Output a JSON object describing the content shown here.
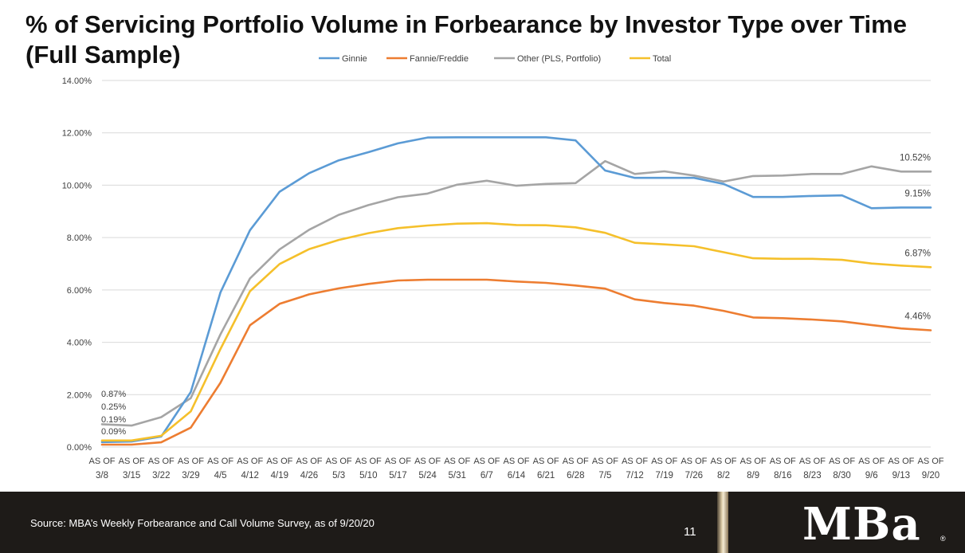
{
  "title": "% of Servicing Portfolio Volume in Forbearance by Investor Type over Time (Full Sample)",
  "footer": {
    "source": "Source: MBA’s Weekly Forbearance and Call Volume Survey, as of 9/20/20",
    "page_number": "11",
    "logo": "MBa",
    "registered_mark": "®"
  },
  "chart_data": {
    "type": "line",
    "title": "% of Servicing Portfolio Volume in Forbearance by Investor Type over Time (Full Sample)",
    "xlabel": "",
    "ylabel": "",
    "ylim": [
      0,
      14
    ],
    "yticks": [
      "0.00%",
      "2.00%",
      "4.00%",
      "6.00%",
      "8.00%",
      "10.00%",
      "12.00%",
      "14.00%"
    ],
    "x_prefix": "AS OF",
    "categories": [
      "3/8",
      "3/15",
      "3/22",
      "3/29",
      "4/5",
      "4/12",
      "4/19",
      "4/26",
      "5/3",
      "5/10",
      "5/17",
      "5/24",
      "5/31",
      "6/7",
      "6/14",
      "6/21",
      "6/28",
      "7/5",
      "7/12",
      "7/19",
      "7/26",
      "8/2",
      "8/9",
      "8/16",
      "8/23",
      "8/30",
      "9/6",
      "9/13",
      "9/20"
    ],
    "legend_position": "top",
    "series": [
      {
        "name": "Ginnie",
        "color": "#5b9bd5",
        "values": [
          0.19,
          0.21,
          0.4,
          2.1,
          5.9,
          8.28,
          9.75,
          10.46,
          10.95,
          11.26,
          11.6,
          11.82,
          11.83,
          11.83,
          11.83,
          11.83,
          11.71,
          10.56,
          10.28,
          10.28,
          10.28,
          10.05,
          9.55,
          9.55,
          9.59,
          9.61,
          9.12,
          9.15,
          9.15
        ]
      },
      {
        "name": "Fannie/Freddie",
        "color": "#ed7d31",
        "values": [
          0.09,
          0.09,
          0.18,
          0.74,
          2.45,
          4.65,
          5.47,
          5.83,
          6.06,
          6.23,
          6.36,
          6.39,
          6.39,
          6.39,
          6.32,
          6.27,
          6.17,
          6.05,
          5.64,
          5.5,
          5.4,
          5.2,
          4.95,
          4.92,
          4.87,
          4.8,
          4.66,
          4.53,
          4.46
        ]
      },
      {
        "name": "Other (PLS, Portfolio)",
        "color": "#a5a5a5",
        "values": [
          0.87,
          0.82,
          1.14,
          1.87,
          4.3,
          6.44,
          7.55,
          8.3,
          8.87,
          9.24,
          9.54,
          9.68,
          10.02,
          10.17,
          9.98,
          10.05,
          10.08,
          10.92,
          10.43,
          10.53,
          10.37,
          10.14,
          10.35,
          10.37,
          10.43,
          10.43,
          10.72,
          10.52,
          10.52
        ]
      },
      {
        "name": "Total",
        "color": "#f5c02b",
        "values": [
          0.25,
          0.25,
          0.43,
          1.36,
          3.74,
          5.95,
          6.99,
          7.56,
          7.91,
          8.17,
          8.36,
          8.46,
          8.53,
          8.55,
          8.48,
          8.47,
          8.39,
          8.18,
          7.8,
          7.74,
          7.67,
          7.44,
          7.21,
          7.19,
          7.19,
          7.15,
          7.01,
          6.93,
          6.87
        ]
      }
    ],
    "start_labels": [
      "0.87%",
      "0.25%",
      "0.19%",
      "0.09%"
    ],
    "end_labels": [
      {
        "series": "Other (PLS, Portfolio)",
        "text": "10.52%"
      },
      {
        "series": "Ginnie",
        "text": "9.15%"
      },
      {
        "series": "Total",
        "text": "6.87%"
      },
      {
        "series": "Fannie/Freddie",
        "text": "4.46%"
      }
    ]
  }
}
